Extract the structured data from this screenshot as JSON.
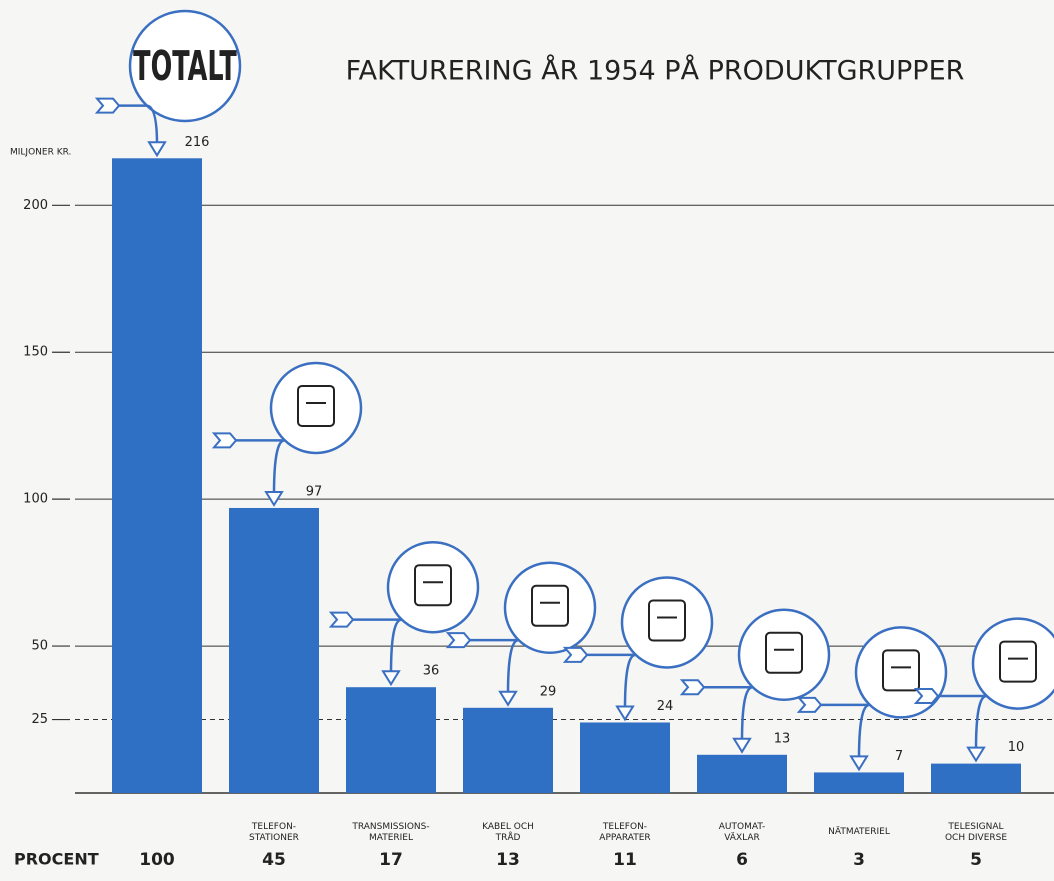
{
  "chart_data": {
    "type": "bar",
    "title": "FAKTURERING ÅR 1954 PÅ PRODUKTGRUPPER",
    "y_label": "MILJONER KR.",
    "total_callout": "TOTALT",
    "categories": [
      null,
      "TELEFON-\nSTATIONER",
      "TRANSMISSIONS-\nMATERIEL",
      "KABEL OCH\nTRÅD",
      "TELEFON-\nAPPARATER",
      "AUTOMAT-\nVÄXLAR",
      "NÄTMATERIEL",
      "TELESIGNAL\nOCH DIVERSE"
    ],
    "values": [
      216,
      97,
      36,
      29,
      24,
      13,
      7,
      10
    ],
    "color": "#2f6fc4",
    "ylim": [
      0,
      260
    ],
    "yticks": [
      25,
      50,
      100,
      150,
      200
    ],
    "dashed_tick": 25,
    "grid": true,
    "percent": {
      "label": "PROCENT",
      "values": [
        100,
        45,
        17,
        13,
        11,
        6,
        3,
        5
      ]
    }
  }
}
